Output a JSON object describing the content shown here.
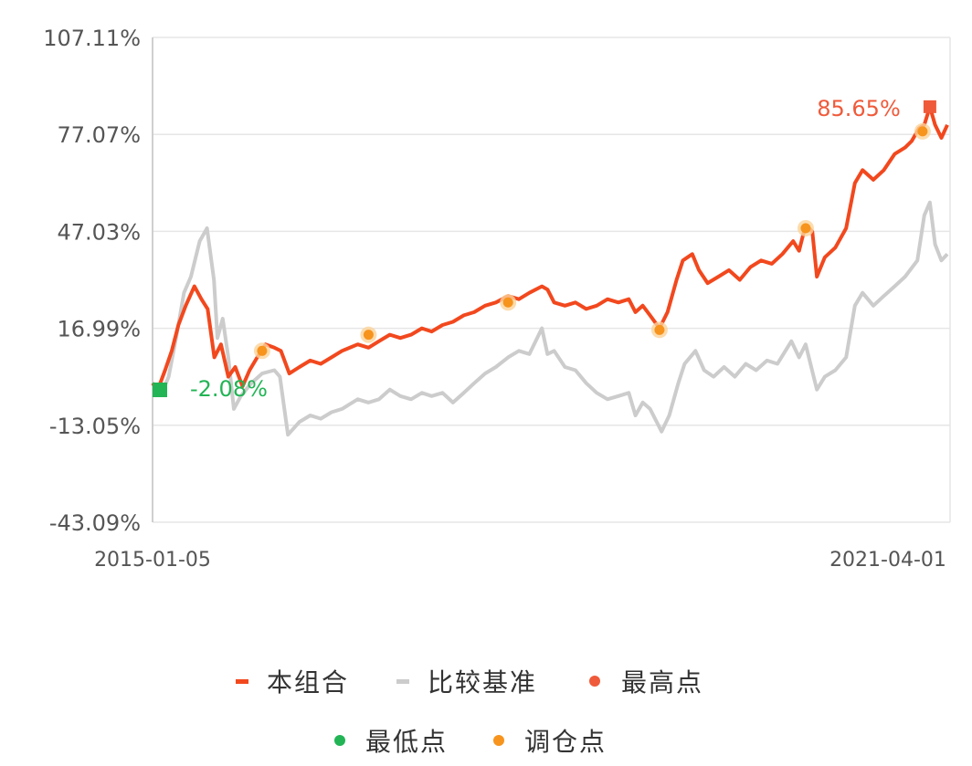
{
  "chart_data": {
    "type": "line",
    "ylim": [
      -43.09,
      107.11
    ],
    "y_ticks": [
      "107.11%",
      "77.07%",
      "47.03%",
      "16.99%",
      "-13.05%",
      "-43.09%"
    ],
    "y_tick_values": [
      107.11,
      77.07,
      47.03,
      16.99,
      -13.05,
      -43.09
    ],
    "x_ticks": [
      "2015-01-05",
      "2021-04-01"
    ],
    "x_range": [
      "2015-01-05",
      "2021-04-01"
    ],
    "grid": "horizontal",
    "legend_position": "bottom",
    "colors": {
      "portfolio": "#f2481e",
      "benchmark": "#cccccc",
      "max_point": "#ef5a3a",
      "min_point": "#22b455",
      "rebalance": "#f7941d",
      "grid": "#e6e6e6",
      "axis": "#cfcfcf"
    },
    "series": [
      {
        "name": "本组合",
        "points": [
          [
            "2015-01-05",
            0.0
          ],
          [
            "2015-01-20",
            -2.08
          ],
          [
            "2015-02-10",
            4.0
          ],
          [
            "2015-03-01",
            10.0
          ],
          [
            "2015-03-20",
            18.0
          ],
          [
            "2015-04-10",
            24.0
          ],
          [
            "2015-05-05",
            30.0
          ],
          [
            "2015-05-25",
            26.0
          ],
          [
            "2015-06-12",
            23.0
          ],
          [
            "2015-07-01",
            8.0
          ],
          [
            "2015-07-20",
            12.0
          ],
          [
            "2015-08-10",
            2.0
          ],
          [
            "2015-08-30",
            5.0
          ],
          [
            "2015-09-20",
            -1.0
          ],
          [
            "2015-10-10",
            4.0
          ],
          [
            "2015-11-01",
            8.0
          ],
          [
            "2015-11-25",
            12.0
          ],
          [
            "2015-12-20",
            11.0
          ],
          [
            "2016-01-08",
            10.0
          ],
          [
            "2016-02-01",
            3.0
          ],
          [
            "2016-03-01",
            5.0
          ],
          [
            "2016-04-01",
            7.0
          ],
          [
            "2016-05-01",
            6.0
          ],
          [
            "2016-06-01",
            8.0
          ],
          [
            "2016-07-01",
            10.0
          ],
          [
            "2016-08-15",
            12.0
          ],
          [
            "2016-09-15",
            11.0
          ],
          [
            "2016-10-15",
            13.0
          ],
          [
            "2016-11-15",
            15.0
          ],
          [
            "2016-12-15",
            14.0
          ],
          [
            "2017-01-15",
            15.0
          ],
          [
            "2017-02-15",
            17.0
          ],
          [
            "2017-03-15",
            16.0
          ],
          [
            "2017-04-15",
            18.0
          ],
          [
            "2017-05-15",
            19.0
          ],
          [
            "2017-06-15",
            21.0
          ],
          [
            "2017-07-15",
            22.0
          ],
          [
            "2017-08-15",
            24.0
          ],
          [
            "2017-09-15",
            25.0
          ],
          [
            "2017-10-20",
            27.0
          ],
          [
            "2017-11-20",
            26.0
          ],
          [
            "2017-12-20",
            28.0
          ],
          [
            "2018-01-25",
            30.0
          ],
          [
            "2018-02-10",
            29.0
          ],
          [
            "2018-03-01",
            25.0
          ],
          [
            "2018-04-01",
            24.0
          ],
          [
            "2018-05-01",
            25.0
          ],
          [
            "2018-06-01",
            23.0
          ],
          [
            "2018-07-01",
            24.0
          ],
          [
            "2018-08-01",
            26.0
          ],
          [
            "2018-09-01",
            25.0
          ],
          [
            "2018-10-01",
            26.0
          ],
          [
            "2018-10-20",
            22.0
          ],
          [
            "2018-11-10",
            24.0
          ],
          [
            "2018-12-01",
            21.0
          ],
          [
            "2018-12-28",
            17.0
          ],
          [
            "2019-01-20",
            22.0
          ],
          [
            "2019-02-15",
            32.0
          ],
          [
            "2019-03-05",
            38.0
          ],
          [
            "2019-04-01",
            40.0
          ],
          [
            "2019-04-20",
            35.0
          ],
          [
            "2019-05-15",
            31.0
          ],
          [
            "2019-06-15",
            33.0
          ],
          [
            "2019-07-15",
            35.0
          ],
          [
            "2019-08-15",
            32.0
          ],
          [
            "2019-09-15",
            36.0
          ],
          [
            "2019-10-15",
            38.0
          ],
          [
            "2019-11-15",
            37.0
          ],
          [
            "2019-12-15",
            40.0
          ],
          [
            "2020-01-15",
            44.0
          ],
          [
            "2020-02-01",
            41.0
          ],
          [
            "2020-02-20",
            49.0
          ],
          [
            "2020-03-10",
            47.0
          ],
          [
            "2020-03-23",
            33.0
          ],
          [
            "2020-04-15",
            39.0
          ],
          [
            "2020-05-15",
            42.0
          ],
          [
            "2020-06-15",
            48.0
          ],
          [
            "2020-07-10",
            62.0
          ],
          [
            "2020-08-01",
            66.0
          ],
          [
            "2020-09-01",
            63.0
          ],
          [
            "2020-10-01",
            66.0
          ],
          [
            "2020-11-01",
            71.0
          ],
          [
            "2020-12-01",
            73.0
          ],
          [
            "2020-12-20",
            75.0
          ],
          [
            "2021-01-10",
            79.0
          ],
          [
            "2021-01-25",
            80.0
          ],
          [
            "2021-02-10",
            85.65
          ],
          [
            "2021-02-25",
            80.0
          ],
          [
            "2021-03-15",
            76.0
          ],
          [
            "2021-04-01",
            80.0
          ]
        ]
      },
      {
        "name": "比较基准",
        "points": [
          [
            "2015-01-05",
            0.0
          ],
          [
            "2015-02-01",
            -3.0
          ],
          [
            "2015-02-20",
            2.0
          ],
          [
            "2015-03-15",
            15.0
          ],
          [
            "2015-04-05",
            28.0
          ],
          [
            "2015-04-25",
            33.0
          ],
          [
            "2015-05-20",
            44.0
          ],
          [
            "2015-06-10",
            48.0
          ],
          [
            "2015-06-30",
            32.0
          ],
          [
            "2015-07-10",
            14.0
          ],
          [
            "2015-07-25",
            20.0
          ],
          [
            "2015-08-10",
            8.0
          ],
          [
            "2015-08-26",
            -8.0
          ],
          [
            "2015-09-15",
            -4.0
          ],
          [
            "2015-10-15",
            0.0
          ],
          [
            "2015-11-15",
            3.0
          ],
          [
            "2015-12-20",
            4.0
          ],
          [
            "2016-01-05",
            2.0
          ],
          [
            "2016-01-28",
            -16.0
          ],
          [
            "2016-03-01",
            -12.0
          ],
          [
            "2016-04-01",
            -10.0
          ],
          [
            "2016-05-01",
            -11.0
          ],
          [
            "2016-06-01",
            -9.0
          ],
          [
            "2016-07-01",
            -8.0
          ],
          [
            "2016-08-15",
            -5.0
          ],
          [
            "2016-09-15",
            -6.0
          ],
          [
            "2016-10-15",
            -5.0
          ],
          [
            "2016-11-15",
            -2.0
          ],
          [
            "2016-12-15",
            -4.0
          ],
          [
            "2017-01-15",
            -5.0
          ],
          [
            "2017-02-15",
            -3.0
          ],
          [
            "2017-03-15",
            -4.0
          ],
          [
            "2017-04-15",
            -3.0
          ],
          [
            "2017-05-15",
            -6.0
          ],
          [
            "2017-06-15",
            -3.0
          ],
          [
            "2017-07-15",
            0.0
          ],
          [
            "2017-08-15",
            3.0
          ],
          [
            "2017-09-15",
            5.0
          ],
          [
            "2017-10-20",
            8.0
          ],
          [
            "2017-11-20",
            10.0
          ],
          [
            "2017-12-20",
            9.0
          ],
          [
            "2018-01-25",
            17.0
          ],
          [
            "2018-02-10",
            9.0
          ],
          [
            "2018-03-01",
            10.0
          ],
          [
            "2018-04-01",
            5.0
          ],
          [
            "2018-05-01",
            4.0
          ],
          [
            "2018-06-01",
            0.0
          ],
          [
            "2018-07-01",
            -3.0
          ],
          [
            "2018-08-01",
            -5.0
          ],
          [
            "2018-09-01",
            -4.0
          ],
          [
            "2018-10-01",
            -3.0
          ],
          [
            "2018-10-20",
            -10.0
          ],
          [
            "2018-11-10",
            -6.0
          ],
          [
            "2018-12-01",
            -8.0
          ],
          [
            "2019-01-03",
            -15.0
          ],
          [
            "2019-01-25",
            -10.0
          ],
          [
            "2019-02-20",
            0.0
          ],
          [
            "2019-03-10",
            6.0
          ],
          [
            "2019-04-10",
            10.0
          ],
          [
            "2019-05-05",
            4.0
          ],
          [
            "2019-06-01",
            2.0
          ],
          [
            "2019-07-01",
            5.0
          ],
          [
            "2019-08-01",
            2.0
          ],
          [
            "2019-09-01",
            6.0
          ],
          [
            "2019-10-01",
            4.0
          ],
          [
            "2019-11-01",
            7.0
          ],
          [
            "2019-12-01",
            6.0
          ],
          [
            "2020-01-10",
            13.0
          ],
          [
            "2020-02-01",
            8.0
          ],
          [
            "2020-02-20",
            12.0
          ],
          [
            "2020-03-23",
            -2.0
          ],
          [
            "2020-04-15",
            2.0
          ],
          [
            "2020-05-15",
            4.0
          ],
          [
            "2020-06-15",
            8.0
          ],
          [
            "2020-07-10",
            24.0
          ],
          [
            "2020-08-01",
            28.0
          ],
          [
            "2020-09-01",
            24.0
          ],
          [
            "2020-10-01",
            27.0
          ],
          [
            "2020-11-01",
            30.0
          ],
          [
            "2020-12-01",
            33.0
          ],
          [
            "2021-01-05",
            38.0
          ],
          [
            "2021-01-25",
            52.0
          ],
          [
            "2021-02-10",
            56.0
          ],
          [
            "2021-02-25",
            43.0
          ],
          [
            "2021-03-15",
            38.0
          ],
          [
            "2021-04-01",
            40.0
          ]
        ]
      }
    ],
    "max_point": {
      "date": "2021-02-10",
      "value": 85.65,
      "label": "85.65%"
    },
    "min_point": {
      "date": "2015-01-20",
      "value": -2.08,
      "label": "-2.08%"
    },
    "rebalance_points": [
      {
        "date": "2015-11-15",
        "value": 10.0
      },
      {
        "date": "2016-09-15",
        "value": 15.0
      },
      {
        "date": "2017-10-20",
        "value": 25.0
      },
      {
        "date": "2018-12-28",
        "value": 16.5
      },
      {
        "date": "2020-02-20",
        "value": 48.0
      },
      {
        "date": "2021-01-20",
        "value": 78.0
      }
    ],
    "legend": {
      "row1": [
        "本组合",
        "比较基准",
        "最高点"
      ],
      "row2": [
        "最低点",
        "调仓点"
      ]
    }
  }
}
